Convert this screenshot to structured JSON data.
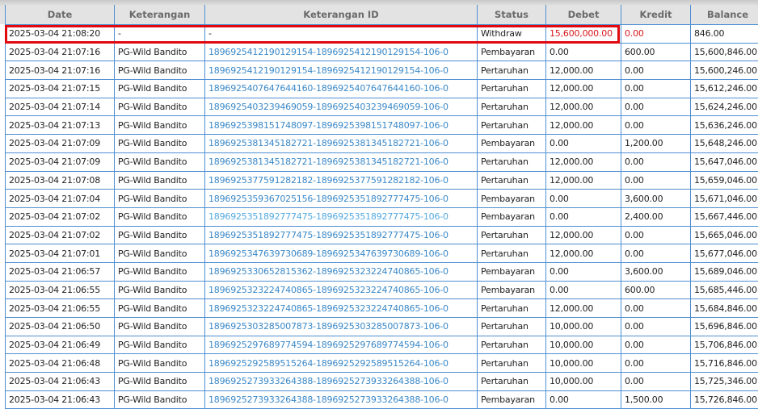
{
  "columns": [
    "Date",
    "Keterangan",
    "Keterangan ID",
    "Status",
    "Debet",
    "Kredit",
    "Balance"
  ],
  "highlight_color": "#e00910",
  "rows": [
    {
      "date": "2025-03-04 21:08:20",
      "ket": "-",
      "id": "-",
      "status": "Withdraw",
      "debet": "15,600,000.00",
      "kredit": "0.00",
      "balance": "846.00"
    },
    {
      "date": "2025-03-04 21:07:16",
      "ket": "PG-Wild Bandito",
      "id": "1896925412190129154-1896925412190129154-106-0",
      "status": "Pembayaran",
      "debet": "0.00",
      "kredit": "600.00",
      "balance": "15,600,846.00"
    },
    {
      "date": "2025-03-04 21:07:16",
      "ket": "PG-Wild Bandito",
      "id": "1896925412190129154-1896925412190129154-106-0",
      "status": "Pertaruhan",
      "debet": "12,000.00",
      "kredit": "0.00",
      "balance": "15,600,246.00"
    },
    {
      "date": "2025-03-04 21:07:15",
      "ket": "PG-Wild Bandito",
      "id": "1896925407647644160-1896925407647644160-106-0",
      "status": "Pertaruhan",
      "debet": "12,000.00",
      "kredit": "0.00",
      "balance": "15,612,246.00"
    },
    {
      "date": "2025-03-04 21:07:14",
      "ket": "PG-Wild Bandito",
      "id": "1896925403239469059-1896925403239469059-106-0",
      "status": "Pertaruhan",
      "debet": "12,000.00",
      "kredit": "0.00",
      "balance": "15,624,246.00"
    },
    {
      "date": "2025-03-04 21:07:13",
      "ket": "PG-Wild Bandito",
      "id": "1896925398151748097-1896925398151748097-106-0",
      "status": "Pertaruhan",
      "debet": "12,000.00",
      "kredit": "0.00",
      "balance": "15,636,246.00"
    },
    {
      "date": "2025-03-04 21:07:09",
      "ket": "PG-Wild Bandito",
      "id": "1896925381345182721-1896925381345182721-106-0",
      "status": "Pembayaran",
      "debet": "0.00",
      "kredit": "1,200.00",
      "balance": "15,648,246.00"
    },
    {
      "date": "2025-03-04 21:07:09",
      "ket": "PG-Wild Bandito",
      "id": "1896925381345182721-1896925381345182721-106-0",
      "status": "Pertaruhan",
      "debet": "12,000.00",
      "kredit": "0.00",
      "balance": "15,647,046.00"
    },
    {
      "date": "2025-03-04 21:07:08",
      "ket": "PG-Wild Bandito",
      "id": "1896925377591282182-1896925377591282182-106-0",
      "status": "Pertaruhan",
      "debet": "12,000.00",
      "kredit": "0.00",
      "balance": "15,659,046.00"
    },
    {
      "date": "2025-03-04 21:07:04",
      "ket": "PG-Wild Bandito",
      "id": "1896925359367025156-1896925351892777475-106-0",
      "status": "Pembayaran",
      "debet": "0.00",
      "kredit": "3,600.00",
      "balance": "15,671,046.00"
    },
    {
      "date": "2025-03-04 21:07:02",
      "ket": "PG-Wild Bandito",
      "id": "1896925351892777475-1896925351892777475-106-0",
      "status": "Pembayaran",
      "debet": "0.00",
      "kredit": "2,400.00",
      "balance": "15,667,446.00"
    },
    {
      "date": "2025-03-04 21:07:02",
      "ket": "PG-Wild Bandito",
      "id": "1896925351892777475-1896925351892777475-106-0",
      "status": "Pertaruhan",
      "debet": "12,000.00",
      "kredit": "0.00",
      "balance": "15,665,046.00"
    },
    {
      "date": "2025-03-04 21:07:01",
      "ket": "PG-Wild Bandito",
      "id": "1896925347639730689-1896925347639730689-106-0",
      "status": "Pertaruhan",
      "debet": "12,000.00",
      "kredit": "0.00",
      "balance": "15,677,046.00"
    },
    {
      "date": "2025-03-04 21:06:57",
      "ket": "PG-Wild Bandito",
      "id": "1896925330652815362-1896925323224740865-106-0",
      "status": "Pembayaran",
      "debet": "0.00",
      "kredit": "3,600.00",
      "balance": "15,689,046.00"
    },
    {
      "date": "2025-03-04 21:06:55",
      "ket": "PG-Wild Bandito",
      "id": "1896925323224740865-1896925323224740865-106-0",
      "status": "Pembayaran",
      "debet": "0.00",
      "kredit": "600.00",
      "balance": "15,685,446.00"
    },
    {
      "date": "2025-03-04 21:06:55",
      "ket": "PG-Wild Bandito",
      "id": "1896925323224740865-1896925323224740865-106-0",
      "status": "Pertaruhan",
      "debet": "12,000.00",
      "kredit": "0.00",
      "balance": "15,684,846.00"
    },
    {
      "date": "2025-03-04 21:06:50",
      "ket": "PG-Wild Bandito",
      "id": "1896925303285007873-1896925303285007873-106-0",
      "status": "Pertaruhan",
      "debet": "10,000.00",
      "kredit": "0.00",
      "balance": "15,696,846.00"
    },
    {
      "date": "2025-03-04 21:06:49",
      "ket": "PG-Wild Bandito",
      "id": "1896925297689774594-1896925297689774594-106-0",
      "status": "Pertaruhan",
      "debet": "10,000.00",
      "kredit": "0.00",
      "balance": "15,706,846.00"
    },
    {
      "date": "2025-03-04 21:06:48",
      "ket": "PG-Wild Bandito",
      "id": "1896925292589515264-1896925292589515264-106-0",
      "status": "Pertaruhan",
      "debet": "10,000.00",
      "kredit": "0.00",
      "balance": "15,716,846.00"
    },
    {
      "date": "2025-03-04 21:06:43",
      "ket": "PG-Wild Bandito",
      "id": "1896925273933264388-1896925273933264388-106-0",
      "status": "Pertaruhan",
      "debet": "10,000.00",
      "kredit": "0.00",
      "balance": "15,725,346.00"
    },
    {
      "date": "2025-03-04 21:06:43",
      "ket": "PG-Wild Bandito",
      "id": "1896925273933264388-1896925273933264388-106-0",
      "status": "Pembayaran",
      "debet": "0.00",
      "kredit": "1,500.00",
      "balance": "15,726,846.00"
    }
  ]
}
